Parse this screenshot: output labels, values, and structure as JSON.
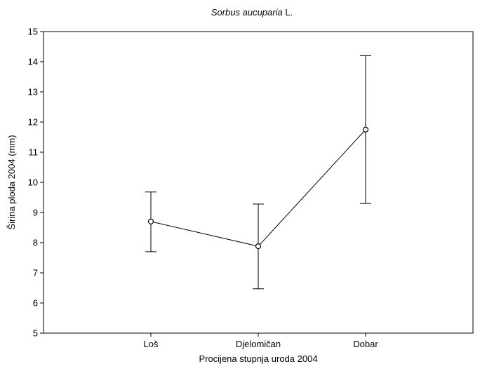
{
  "chart_data": {
    "type": "line",
    "title_italic": "Sorbus aucuparia",
    "title_suffix": " L.",
    "xlabel": "Procijena stupnja uroda 2004",
    "ylabel": "Širina ploda 2004 (mm)",
    "categories": [
      "Loš",
      "Djelomičan",
      "Dobar"
    ],
    "series": [
      {
        "values": [
          8.7,
          7.88,
          11.75
        ],
        "error_upper": [
          9.68,
          9.28,
          14.2
        ],
        "error_lower": [
          7.7,
          6.47,
          9.3
        ]
      }
    ],
    "ylim": [
      5,
      15
    ],
    "yticks": [
      5,
      6,
      7,
      8,
      9,
      10,
      11,
      12,
      13,
      14,
      15
    ],
    "grid": false,
    "line_color": "#000000",
    "marker": "open-circle"
  }
}
